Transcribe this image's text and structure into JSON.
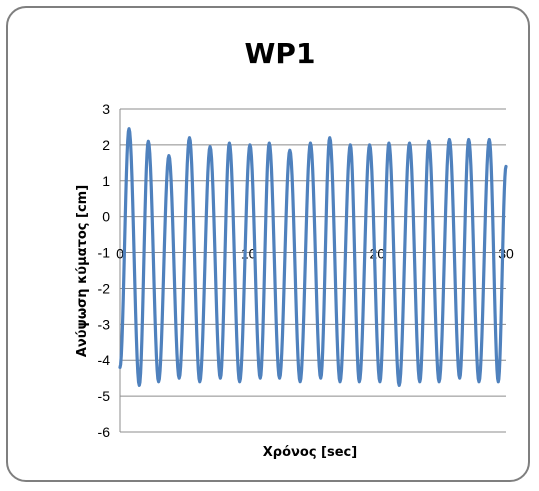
{
  "chart_data": {
    "type": "line",
    "title": "WP1",
    "xlabel": "Χρόνος [sec]",
    "ylabel": "Ανύψωση κύματος [cm]",
    "xlim": [
      0,
      30
    ],
    "ylim": [
      -6,
      3
    ],
    "x_ticks": [
      "0",
      "10",
      "20",
      "30"
    ],
    "y_ticks": [
      "3",
      "2",
      "1",
      "0",
      "-1",
      "-2",
      "-3",
      "-4",
      "-5",
      "-6"
    ],
    "grid": true,
    "legend": "none",
    "series": [
      {
        "color": "#4f81bd",
        "crests": [
          [
            0.7,
            2.45
          ],
          [
            2.2,
            2.1
          ],
          [
            3.8,
            1.7
          ],
          [
            5.4,
            2.2
          ],
          [
            7.0,
            1.95
          ],
          [
            8.5,
            2.05
          ],
          [
            10.1,
            2.0
          ],
          [
            11.6,
            2.05
          ],
          [
            13.2,
            1.85
          ],
          [
            14.8,
            2.05
          ],
          [
            16.3,
            2.2
          ],
          [
            17.9,
            2.0
          ],
          [
            19.4,
            2.0
          ],
          [
            20.9,
            2.05
          ],
          [
            22.5,
            2.05
          ],
          [
            24.0,
            2.1
          ],
          [
            25.6,
            2.15
          ],
          [
            27.1,
            2.15
          ],
          [
            28.7,
            2.15
          ]
        ],
        "troughs": [
          [
            1.5,
            -4.7
          ],
          [
            3.0,
            -4.6
          ],
          [
            4.6,
            -4.5
          ],
          [
            6.2,
            -4.6
          ],
          [
            7.8,
            -4.5
          ],
          [
            9.3,
            -4.6
          ],
          [
            10.9,
            -4.5
          ],
          [
            12.4,
            -4.5
          ],
          [
            14.0,
            -4.6
          ],
          [
            15.6,
            -4.5
          ],
          [
            17.1,
            -4.6
          ],
          [
            18.6,
            -4.6
          ],
          [
            20.2,
            -4.6
          ],
          [
            21.7,
            -4.7
          ],
          [
            23.3,
            -4.6
          ],
          [
            24.8,
            -4.6
          ],
          [
            26.4,
            -4.5
          ],
          [
            27.9,
            -4.6
          ],
          [
            29.4,
            -4.6
          ]
        ],
        "end_value": [
          30.0,
          1.4
        ]
      }
    ]
  }
}
